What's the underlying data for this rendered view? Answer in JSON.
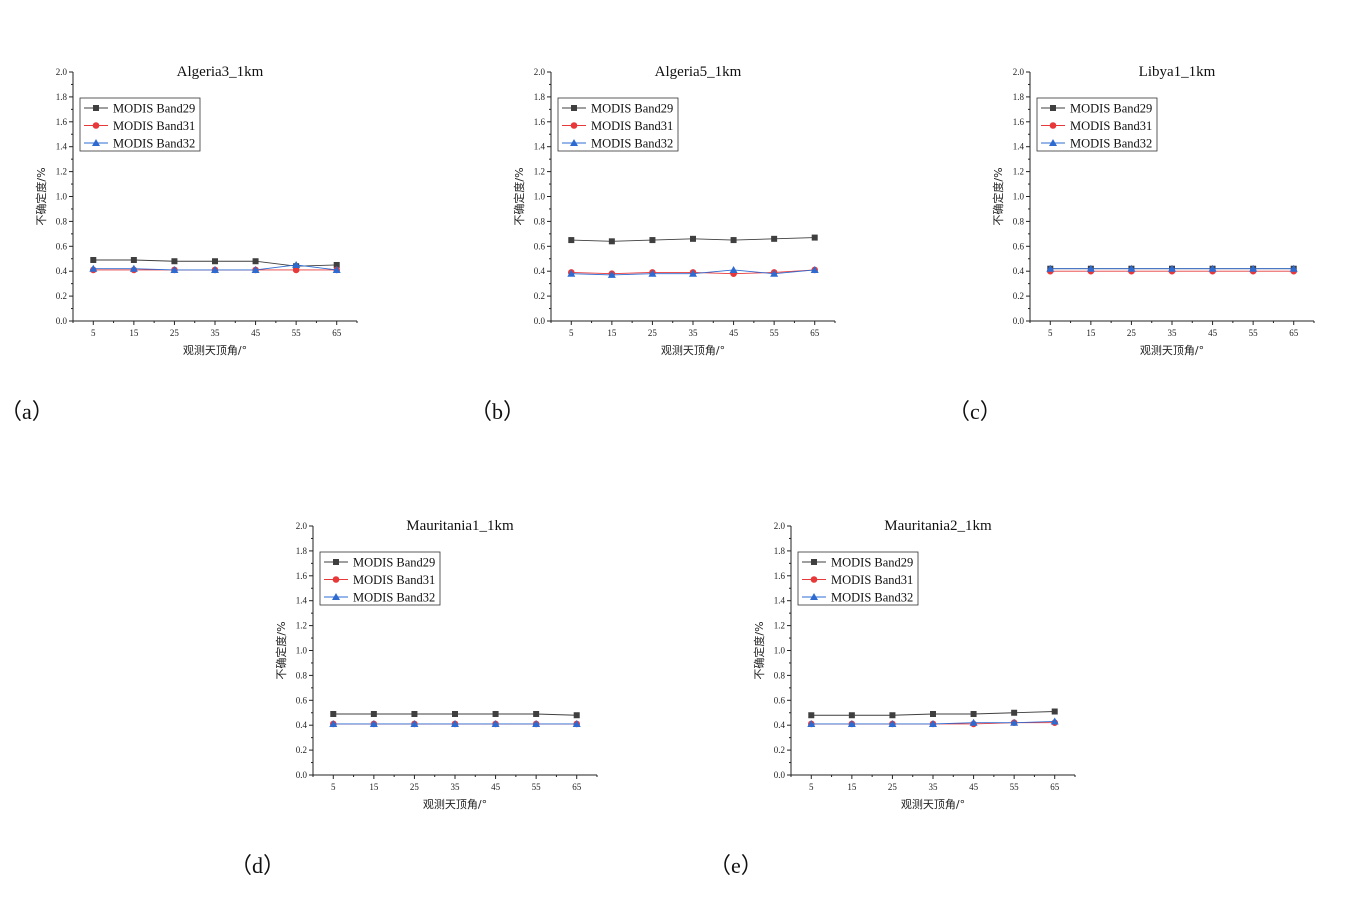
{
  "chart_data": [
    {
      "type": "line",
      "panel_label": "（a）",
      "title": "Algeria3_1km",
      "xlabel": "观测天顶角/°",
      "ylabel": "不确定度/%",
      "x": [
        5,
        15,
        25,
        35,
        45,
        55,
        65
      ],
      "ylim": [
        0,
        2.0
      ],
      "yticks": [
        "0.0",
        "0.2",
        "0.4",
        "0.6",
        "0.8",
        "1.0",
        "1.2",
        "1.4",
        "1.6",
        "1.8",
        "2.0"
      ],
      "legend": "top-left",
      "grid": false,
      "series": [
        {
          "name": "MODIS Band29",
          "marker": "square",
          "color": "#3f3f3f",
          "values": [
            0.49,
            0.49,
            0.48,
            0.48,
            0.48,
            0.44,
            0.45
          ]
        },
        {
          "name": "MODIS Band31",
          "marker": "circle",
          "color": "#e8393a",
          "values": [
            0.41,
            0.41,
            0.41,
            0.41,
            0.41,
            0.41,
            0.41
          ]
        },
        {
          "name": "MODIS Band32",
          "marker": "triangle",
          "color": "#2e6bd1",
          "values": [
            0.42,
            0.42,
            0.41,
            0.41,
            0.41,
            0.45,
            0.41
          ]
        }
      ]
    },
    {
      "type": "line",
      "panel_label": "（b）",
      "title": "Algeria5_1km",
      "xlabel": "观测天顶角/°",
      "ylabel": "不确定度/%",
      "x": [
        5,
        15,
        25,
        35,
        45,
        55,
        65
      ],
      "ylim": [
        0,
        2.0
      ],
      "yticks": [
        "0.0",
        "0.2",
        "0.4",
        "0.6",
        "0.8",
        "1.0",
        "1.2",
        "1.4",
        "1.6",
        "1.8",
        "2.0"
      ],
      "legend": "top-left",
      "grid": false,
      "series": [
        {
          "name": "MODIS Band29",
          "marker": "square",
          "color": "#3f3f3f",
          "values": [
            0.65,
            0.64,
            0.65,
            0.66,
            0.65,
            0.66,
            0.67
          ]
        },
        {
          "name": "MODIS Band31",
          "marker": "circle",
          "color": "#e8393a",
          "values": [
            0.39,
            0.38,
            0.39,
            0.39,
            0.38,
            0.39,
            0.41
          ]
        },
        {
          "name": "MODIS Band32",
          "marker": "triangle",
          "color": "#2e6bd1",
          "values": [
            0.38,
            0.37,
            0.38,
            0.38,
            0.41,
            0.38,
            0.41
          ]
        }
      ]
    },
    {
      "type": "line",
      "panel_label": "（c）",
      "title": "Libya1_1km",
      "xlabel": "观测天顶角/°",
      "ylabel": "不确定度/%",
      "x": [
        5,
        15,
        25,
        35,
        45,
        55,
        65
      ],
      "ylim": [
        0,
        2.0
      ],
      "yticks": [
        "0.0",
        "0.2",
        "0.4",
        "0.6",
        "0.8",
        "1.0",
        "1.2",
        "1.4",
        "1.6",
        "1.8",
        "2.0"
      ],
      "legend": "top-left",
      "grid": false,
      "series": [
        {
          "name": "MODIS Band29",
          "marker": "square",
          "color": "#3f3f3f",
          "values": [
            0.42,
            0.42,
            0.42,
            0.42,
            0.42,
            0.42,
            0.42
          ]
        },
        {
          "name": "MODIS Band31",
          "marker": "circle",
          "color": "#e8393a",
          "values": [
            0.4,
            0.4,
            0.4,
            0.4,
            0.4,
            0.4,
            0.4
          ]
        },
        {
          "name": "MODIS Band32",
          "marker": "triangle",
          "color": "#2e6bd1",
          "values": [
            0.42,
            0.42,
            0.42,
            0.42,
            0.42,
            0.42,
            0.42
          ]
        }
      ]
    },
    {
      "type": "line",
      "panel_label": "（d）",
      "title": "Mauritania1_1km",
      "xlabel": "观测天顶角/°",
      "ylabel": "不确定度/%",
      "x": [
        5,
        15,
        25,
        35,
        45,
        55,
        65
      ],
      "ylim": [
        0,
        2.0
      ],
      "yticks": [
        "0.0",
        "0.2",
        "0.4",
        "0.6",
        "0.8",
        "1.0",
        "1.2",
        "1.4",
        "1.6",
        "1.8",
        "2.0"
      ],
      "legend": "top-left",
      "grid": false,
      "series": [
        {
          "name": "MODIS Band29",
          "marker": "square",
          "color": "#3f3f3f",
          "values": [
            0.49,
            0.49,
            0.49,
            0.49,
            0.49,
            0.49,
            0.48
          ]
        },
        {
          "name": "MODIS Band31",
          "marker": "circle",
          "color": "#e8393a",
          "values": [
            0.41,
            0.41,
            0.41,
            0.41,
            0.41,
            0.41,
            0.41
          ]
        },
        {
          "name": "MODIS Band32",
          "marker": "triangle",
          "color": "#2e6bd1",
          "values": [
            0.41,
            0.41,
            0.41,
            0.41,
            0.41,
            0.41,
            0.41
          ]
        }
      ]
    },
    {
      "type": "line",
      "panel_label": "（e）",
      "title": "Mauritania2_1km",
      "xlabel": "观测天顶角/°",
      "ylabel": "不确定度/%",
      "x": [
        5,
        15,
        25,
        35,
        45,
        55,
        65
      ],
      "ylim": [
        0,
        2.0
      ],
      "yticks": [
        "0.0",
        "0.2",
        "0.4",
        "0.6",
        "0.8",
        "1.0",
        "1.2",
        "1.4",
        "1.6",
        "1.8",
        "2.0"
      ],
      "legend": "top-left",
      "grid": false,
      "series": [
        {
          "name": "MODIS Band29",
          "marker": "square",
          "color": "#3f3f3f",
          "values": [
            0.48,
            0.48,
            0.48,
            0.49,
            0.49,
            0.5,
            0.51
          ]
        },
        {
          "name": "MODIS Band31",
          "marker": "circle",
          "color": "#e8393a",
          "values": [
            0.41,
            0.41,
            0.41,
            0.41,
            0.41,
            0.42,
            0.42
          ]
        },
        {
          "name": "MODIS Band32",
          "marker": "triangle",
          "color": "#2e6bd1",
          "values": [
            0.41,
            0.41,
            0.41,
            0.41,
            0.42,
            0.42,
            0.43
          ]
        }
      ]
    }
  ]
}
